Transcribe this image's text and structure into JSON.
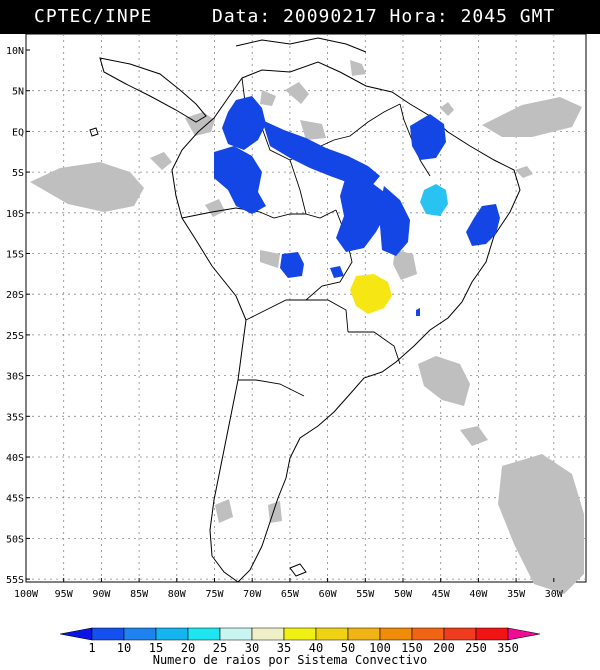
{
  "header": {
    "org": "CPTEC/INPE",
    "info": "Data: 20090217 Hora: 2045 GMT"
  },
  "lat_labels": [
    "10N",
    "5N",
    "EQ",
    "5S",
    "10S",
    "15S",
    "20S",
    "25S",
    "30S",
    "35S",
    "40S",
    "45S",
    "50S",
    "55S"
  ],
  "lon_labels": [
    "100W",
    "95W",
    "90W",
    "85W",
    "80W",
    "75W",
    "70W",
    "65W",
    "60W",
    "55W",
    "50W",
    "45W",
    "40W",
    "35W",
    "30W"
  ],
  "legend": {
    "title": "Numero de raios por Sistema Convectivo",
    "labels": [
      "1",
      "10",
      "15",
      "20",
      "25",
      "30",
      "35",
      "40",
      "50",
      "100",
      "150",
      "200",
      "250",
      "350"
    ],
    "colors": [
      "#0a14e6",
      "#1450f0",
      "#1e82f0",
      "#14b4f0",
      "#1ee6f0",
      "#c8f5f0",
      "#f0f0c8",
      "#f0f014",
      "#f0d214",
      "#f0b414",
      "#f08c0a",
      "#f06414",
      "#f03c1e",
      "#f01414",
      "#f00a96"
    ]
  },
  "colors": {
    "cloud": "#bfbfbf",
    "blue": "#1446e6",
    "light_blue": "#28c3f0",
    "yellow": "#f5e614",
    "dark_blue": "#0a14e6"
  }
}
